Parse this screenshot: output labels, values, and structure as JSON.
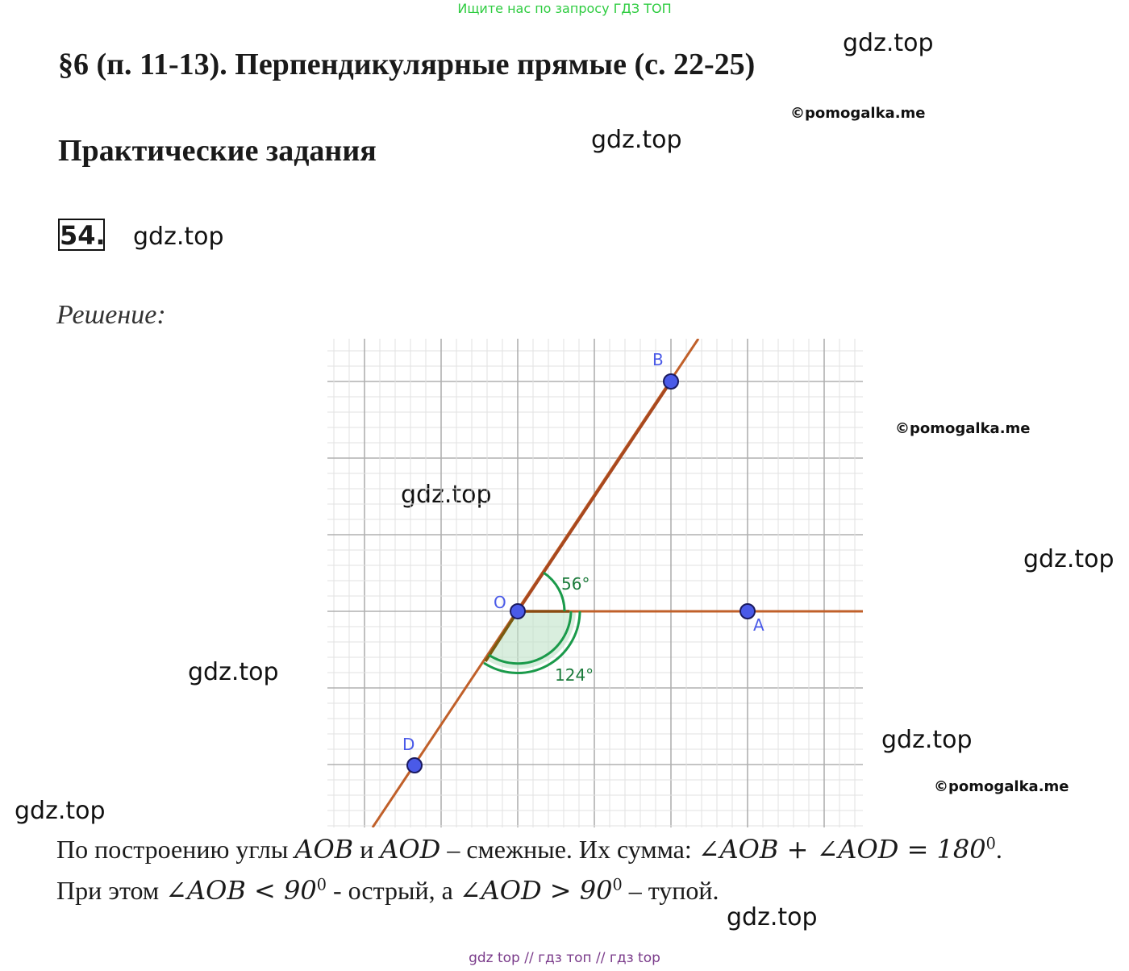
{
  "header": {
    "top_link": "Ищите нас по запросу ГДЗ ТОП",
    "title": "§6 (п. 11-13). Перпендикулярные прямые (с. 22-25)",
    "subtitle": "Практические задания"
  },
  "task": {
    "number": "54.",
    "solution_label": "Решение:"
  },
  "watermarks": {
    "gdz": "gdz.top",
    "pomogalka": "©pomogalka.me"
  },
  "diagram": {
    "points": {
      "A": "A",
      "B": "B",
      "O": "O",
      "D": "D"
    },
    "angle_small": "56°",
    "angle_large": "124°",
    "colors": {
      "line": "#c0602a",
      "point": "#4a5ae8",
      "arc": "#1a9a4a",
      "grid_major": "#b0b0b0",
      "grid_minor": "#e2e2e2"
    }
  },
  "text": {
    "line1": {
      "p1": "По построению углы ",
      "m1": "AOB",
      "p2": " и ",
      "m2": "AOD",
      "p3": " – смежные. Их сумма: ",
      "m3": "∠AOB + ∠AOD = 180",
      "sup": "0",
      "p4": "."
    },
    "line2": {
      "p1": "При этом ",
      "m1": "∠AOB < 90",
      "sup1": "0",
      "p2": " - острый, а ",
      "m2": "∠AOD > 90",
      "sup2": "0",
      "p3": " – тупой."
    }
  },
  "footer": "gdz top  //  гдз топ  //  гдз top"
}
